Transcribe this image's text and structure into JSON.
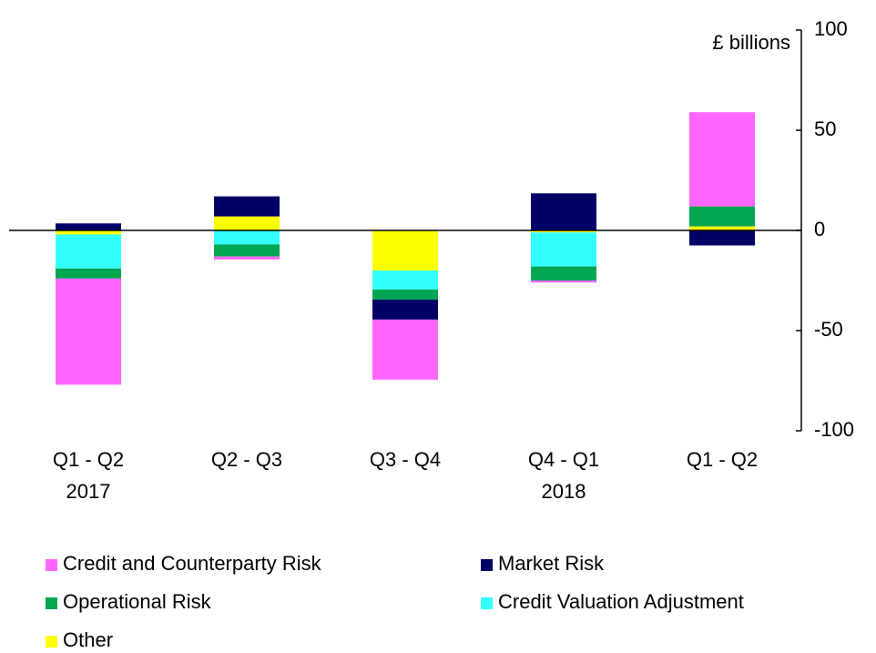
{
  "chart_data": {
    "type": "stacked-bar",
    "y_axis_label": "£ billions",
    "categories": [
      "Q1 - Q2",
      "Q2 - Q3",
      "Q3 - Q4",
      "Q4 - Q1",
      "Q1 - Q2"
    ],
    "category_years": [
      "2017",
      null,
      null,
      "2018",
      null
    ],
    "series": [
      {
        "name": "Credit and Counterparty Risk",
        "color": "#ff66ff",
        "values": [
          -53,
          -1.5,
          -30,
          -1,
          47
        ]
      },
      {
        "name": "Market Risk",
        "color": "#000066",
        "values": [
          3.5,
          10,
          -10,
          18.5,
          -7.5
        ]
      },
      {
        "name": "Operational Risk",
        "color": "#00a651",
        "values": [
          -5,
          -6,
          -5,
          -7,
          10
        ]
      },
      {
        "name": "Credit Valuation Adjustment",
        "color": "#33ffff",
        "values": [
          -17,
          -7,
          -9.5,
          -17,
          0
        ]
      },
      {
        "name": "Other",
        "color": "#ffff00",
        "values": [
          -2,
          7,
          -20,
          -1,
          2
        ]
      }
    ],
    "ylim": [
      -100,
      100
    ],
    "yticks": [
      -100,
      -50,
      0,
      50,
      100
    ]
  }
}
